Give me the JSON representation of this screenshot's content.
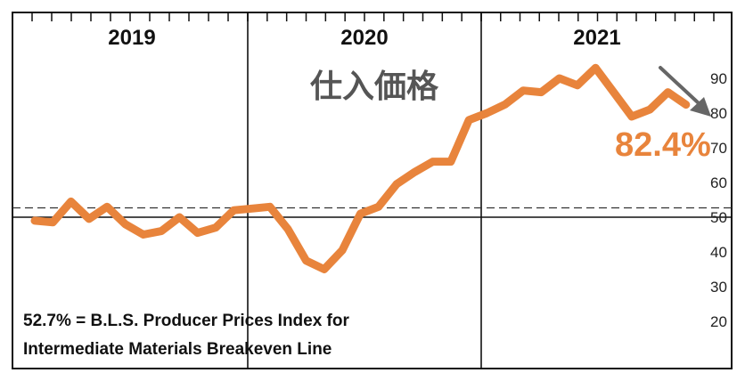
{
  "chart_data": {
    "type": "line",
    "title": "仕入価格",
    "years": [
      "2019",
      "2020",
      "2021"
    ],
    "ylim": [
      10,
      100
    ],
    "y_ticks": [
      20,
      30,
      40,
      50,
      60,
      70,
      80,
      90
    ],
    "reference_lines": [
      {
        "value": 52.7,
        "style": "dashed"
      },
      {
        "value": 50,
        "style": "solid"
      }
    ],
    "series": [
      {
        "color": "#e8843c",
        "values": [
          49,
          48.5,
          54.5,
          49.5,
          53,
          48,
          45,
          46,
          50,
          45.5,
          47,
          52,
          52.5,
          53,
          46.5,
          37.5,
          35,
          40.5,
          51,
          53,
          59.5,
          63,
          66,
          66,
          78,
          80,
          82.5,
          86.5,
          86,
          90,
          88,
          93,
          86,
          79,
          81,
          86,
          82.4
        ]
      }
    ],
    "latest_value_label": "82.4%",
    "annotation": {
      "line1": "52.7% = B.L.S. Producer Prices Index for",
      "line2": "Intermediate Materials Breakeven Line"
    },
    "colors": {
      "line": "#e8843c",
      "arrow": "#666666",
      "title": "#555555"
    }
  }
}
